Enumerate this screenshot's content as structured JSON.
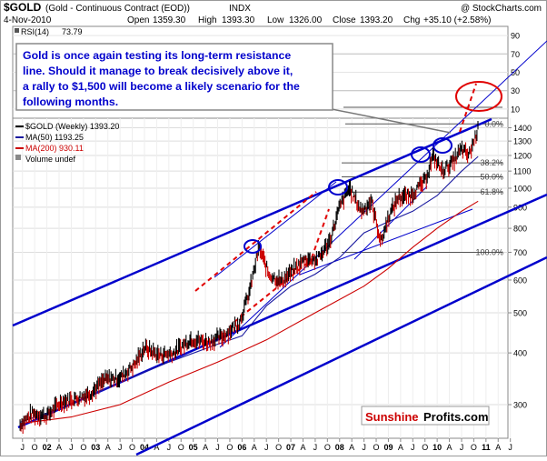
{
  "header": {
    "symbol": "$GOLD",
    "description": "(Gold - Continuous Contract (EOD))",
    "exchange": "INDX",
    "source": "@ StockCharts.com",
    "date": "4-Nov-2010",
    "open_label": "Open",
    "open": "1359.30",
    "high_label": "High",
    "high": "1393.30",
    "low_label": "Low",
    "low": "1326.00",
    "close_label": "Close",
    "close": "1393.20",
    "chg_label": "Chg",
    "chg": "+35.10 (+2.58%)"
  },
  "rsi_panel": {
    "label": "RSI(14)",
    "value": "73.79",
    "scale": [
      "90",
      "70",
      "50",
      "30",
      "10"
    ]
  },
  "annotation": {
    "lines": [
      "Gold is once again testing its long-term resistance",
      "line. Should it manage to break decisively above it,",
      "a rally to $1,500 will become a likely scenario for the",
      "following months."
    ]
  },
  "legend": {
    "price": "$GOLD (Weekly) 1393.20",
    "ma50": "MA(50) 1193.25",
    "ma200": "MA(200) 930.11",
    "volume": "Volume undef"
  },
  "fib_labels": [
    "0.0%",
    "38.2%",
    "50.0%",
    "61.8%",
    "100.0%"
  ],
  "brand": {
    "part1": "Sunshine",
    "part2": "Profits.com"
  },
  "colors": {
    "up_bar": "#000000",
    "down_bar": "#cc0000",
    "ma50": "#1a1aa0",
    "ma200": "#cc0000",
    "trend": "#0000cc",
    "dashed": "#e00000",
    "annotation_text": "#0000cc",
    "fib": "#555555"
  },
  "chart_data": {
    "type": "line",
    "title": "$GOLD (Gold - Continuous Contract (EOD))",
    "y_scale": "log",
    "y_ticks": [
      300,
      400,
      500,
      600,
      700,
      800,
      900,
      1000,
      1100,
      1200,
      1300,
      1400
    ],
    "x_tick_labels": [
      "J",
      "O",
      "02",
      "A",
      "J",
      "O",
      "03",
      "A",
      "J",
      "O",
      "04",
      "A",
      "J",
      "O",
      "05",
      "A",
      "J",
      "O",
      "06",
      "A",
      "J",
      "O",
      "07",
      "A",
      "J",
      "O",
      "08",
      "A",
      "J",
      "O",
      "09",
      "A",
      "J",
      "O",
      "10",
      "A",
      "J",
      "O",
      "11",
      "A",
      "J"
    ],
    "last_close": 1393.2,
    "series": [
      {
        "name": "$GOLD (Weekly)",
        "x": [
          2001.45,
          2001.7,
          2002.0,
          2002.3,
          2002.6,
          2002.9,
          2003.2,
          2003.5,
          2003.8,
          2004.0,
          2004.3,
          2004.6,
          2004.95,
          2005.3,
          2005.6,
          2005.95,
          2006.15,
          2006.35,
          2006.55,
          2006.8,
          2007.05,
          2007.3,
          2007.55,
          2007.8,
          2008.0,
          2008.2,
          2008.45,
          2008.65,
          2008.85,
          2009.0,
          2009.2,
          2009.45,
          2009.75,
          2009.92,
          2010.1,
          2010.3,
          2010.5,
          2010.65,
          2010.84
        ],
        "values": [
          268,
          285,
          282,
          305,
          310,
          320,
          345,
          348,
          375,
          412,
          395,
          400,
          432,
          425,
          438,
          475,
          560,
          720,
          620,
          595,
          632,
          675,
          672,
          745,
          900,
          1000,
          880,
          930,
          740,
          850,
          950,
          960,
          1040,
          1200,
          1100,
          1150,
          1240,
          1200,
          1393
        ]
      },
      {
        "name": "MA(50)",
        "x": [
          2001.45,
          2002.5,
          2003.5,
          2004.5,
          2005.5,
          2006.0,
          2006.5,
          2007.0,
          2007.5,
          2008.0,
          2008.5,
          2009.0,
          2009.5,
          2010.0,
          2010.5,
          2010.84
        ],
        "values": [
          272,
          300,
          340,
          380,
          420,
          440,
          520,
          580,
          620,
          680,
          780,
          830,
          880,
          960,
          1100,
          1193.25
        ]
      },
      {
        "name": "MA(200)",
        "x": [
          2001.45,
          2002.5,
          2003.5,
          2004.5,
          2005.5,
          2006.5,
          2007.5,
          2008.5,
          2009.0,
          2009.5,
          2010.0,
          2010.5,
          2010.84
        ],
        "values": [
          270,
          280,
          300,
          340,
          380,
          430,
          500,
          580,
          640,
          720,
          800,
          880,
          930.11
        ]
      }
    ]
  }
}
